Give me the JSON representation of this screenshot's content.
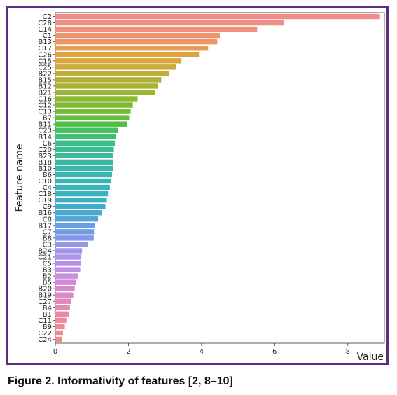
{
  "figure": {
    "caption": "Figure 2. Informativity of features [2, 8–10]",
    "frame_color": "#5b2d86"
  },
  "chart_data": {
    "type": "bar",
    "orientation": "horizontal",
    "xlabel": "Value",
    "ylabel": "Feature name",
    "xlim": [
      0,
      9.0
    ],
    "xticks": [
      0,
      2,
      4,
      6,
      8
    ],
    "grid": false,
    "categories": [
      "C2",
      "C28",
      "C14",
      "C1",
      "B13",
      "C17",
      "C26",
      "C15",
      "C25",
      "B22",
      "B15",
      "B12",
      "B21",
      "C16",
      "C12",
      "C13",
      "B7",
      "B11",
      "C23",
      "B14",
      "C6",
      "C20",
      "B23",
      "B18",
      "B10",
      "B6",
      "C10",
      "C4",
      "C18",
      "C19",
      "C9",
      "B16",
      "C8",
      "B17",
      "C7",
      "B8",
      "C3",
      "B24",
      "C21",
      "C5",
      "B3",
      "B2",
      "B5",
      "B20",
      "B19",
      "C27",
      "B4",
      "B1",
      "C11",
      "B9",
      "C22",
      "C24"
    ],
    "values": [
      8.88,
      6.25,
      5.52,
      4.5,
      4.43,
      4.18,
      3.93,
      3.45,
      3.3,
      3.12,
      2.9,
      2.8,
      2.73,
      2.25,
      2.12,
      2.06,
      2.02,
      1.97,
      1.72,
      1.65,
      1.63,
      1.6,
      1.59,
      1.58,
      1.57,
      1.55,
      1.52,
      1.49,
      1.44,
      1.41,
      1.37,
      1.27,
      1.17,
      1.08,
      1.06,
      1.05,
      0.88,
      0.73,
      0.71,
      0.7,
      0.68,
      0.63,
      0.57,
      0.53,
      0.49,
      0.43,
      0.4,
      0.37,
      0.3,
      0.26,
      0.21,
      0.18
    ],
    "colors": [
      "#f08d8b",
      "#f08f85",
      "#ef917c",
      "#ee9370",
      "#ec9664",
      "#e79c52",
      "#e0a240",
      "#d7a73d",
      "#caab3b",
      "#bfae39",
      "#b3b035",
      "#a7b334",
      "#9bb533",
      "#8db834",
      "#80ba35",
      "#72bc36",
      "#61bd3c",
      "#4ebf45",
      "#43c060",
      "#3fbe78",
      "#3dbd87",
      "#3cbb92",
      "#3cba9a",
      "#3bb9a1",
      "#3ab8a8",
      "#3bb6ae",
      "#3bb5b4",
      "#3cb3b9",
      "#3cb2bf",
      "#3eb0c5",
      "#41adcb",
      "#48aad2",
      "#54a6d8",
      "#62a1dd",
      "#729ce3",
      "#8398e6",
      "#9496e8",
      "#a194e9",
      "#ac92e9",
      "#b690e7",
      "#c08ee3",
      "#c98cde",
      "#d18ad8",
      "#d888d1",
      "#de88c8",
      "#e288bf",
      "#e588b5",
      "#e889ab",
      "#ea8aa2",
      "#ec8a99",
      "#ed8b92",
      "#ee8c8c"
    ]
  }
}
